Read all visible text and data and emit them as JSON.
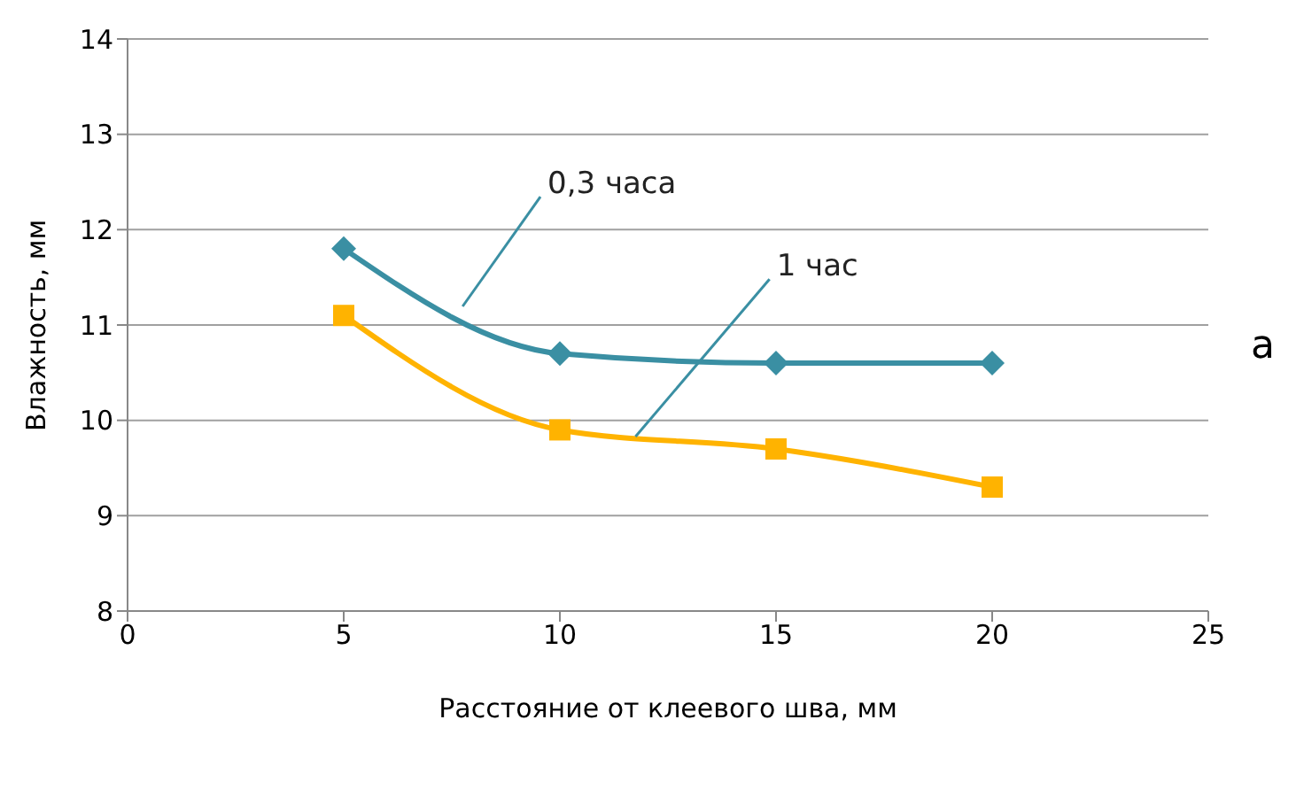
{
  "chart_data": {
    "type": "line",
    "xlabel": "Расстояние от клеевого шва, мм",
    "ylabel": "Влажность, мм",
    "x": [
      5,
      10,
      15,
      20
    ],
    "series": [
      {
        "name": "0,3 часа",
        "color": "#3a8fa3",
        "marker": "diamond",
        "values": [
          11.8,
          10.7,
          10.6,
          10.6
        ]
      },
      {
        "name": "1 час",
        "color": "#ffb300",
        "marker": "square",
        "values": [
          11.1,
          9.9,
          9.7,
          9.3
        ]
      }
    ],
    "xlim": [
      0,
      25
    ],
    "xticks": [
      0,
      5,
      10,
      15,
      20,
      25
    ],
    "ylim": [
      8,
      14
    ],
    "yticks": [
      8,
      9,
      10,
      11,
      12,
      13,
      14
    ],
    "grid": "y",
    "annotations": [
      "а"
    ]
  }
}
